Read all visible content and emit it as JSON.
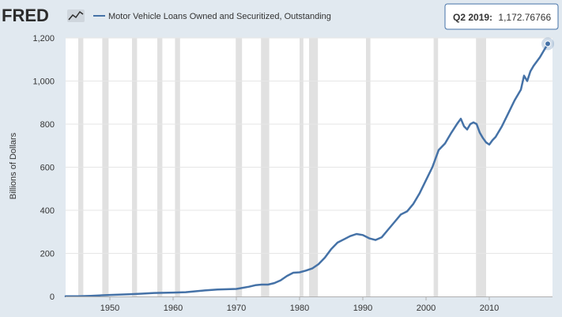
{
  "logo": {
    "text": "FRED"
  },
  "colors": {
    "background": "#e1e9f0",
    "plot_background": "#ffffff",
    "series": "#4572a7",
    "recession": "#e1e1e1",
    "grid": "#e6e6e6",
    "text": "#333333"
  },
  "tooltip": {
    "label": "Q2 2019:",
    "value": "1,172.76766"
  },
  "chart_data": {
    "type": "line",
    "title": "",
    "xlabel": "",
    "ylabel": "Billions of Dollars",
    "xlim": [
      1943.0,
      2020.0
    ],
    "ylim": [
      0,
      1200
    ],
    "grid": "horizontal",
    "legend_position": "top-left",
    "x_ticks": [
      "1950",
      "1960",
      "1970",
      "1980",
      "1990",
      "2000",
      "2010"
    ],
    "y_ticks": [
      "0",
      "200",
      "400",
      "600",
      "800",
      "1,000",
      "1,200"
    ],
    "recessions": [
      [
        1945.0,
        1945.8
      ],
      [
        1948.8,
        1949.8
      ],
      [
        1953.5,
        1954.3
      ],
      [
        1957.5,
        1958.3
      ],
      [
        1960.3,
        1961.1
      ],
      [
        1969.9,
        1970.9
      ],
      [
        1973.9,
        1975.2
      ],
      [
        1980.0,
        1980.6
      ],
      [
        1981.5,
        1982.9
      ],
      [
        1990.5,
        1991.2
      ],
      [
        2001.2,
        2001.9
      ],
      [
        2007.9,
        2009.5
      ]
    ],
    "series": [
      {
        "name": "Motor Vehicle Loans Owned and Securitized, Outstanding",
        "x": [
          1943.0,
          1945.0,
          1947.0,
          1950.0,
          1953.0,
          1955.0,
          1957.0,
          1960.0,
          1962.0,
          1965.0,
          1967.0,
          1970.0,
          1972.0,
          1973.0,
          1974.0,
          1975.0,
          1976.0,
          1977.0,
          1978.0,
          1979.0,
          1980.0,
          1981.0,
          1982.0,
          1983.0,
          1984.0,
          1985.0,
          1986.0,
          1987.0,
          1988.0,
          1989.0,
          1990.0,
          1991.0,
          1992.0,
          1993.0,
          1994.0,
          1995.0,
          1996.0,
          1997.0,
          1998.0,
          1999.0,
          2000.0,
          2001.0,
          2002.0,
          2003.0,
          2004.0,
          2005.0,
          2005.5,
          2006.0,
          2006.5,
          2007.0,
          2007.5,
          2008.0,
          2008.5,
          2009.0,
          2009.5,
          2010.0,
          2010.5,
          2011.0,
          2012.0,
          2013.0,
          2014.0,
          2015.0,
          2015.5,
          2016.0,
          2016.5,
          2017.0,
          2018.0,
          2019.0,
          2019.25
        ],
        "values": [
          1,
          1,
          3,
          7,
          10,
          13,
          16,
          18,
          20,
          28,
          32,
          35,
          45,
          52,
          55,
          55,
          62,
          75,
          95,
          110,
          112,
          120,
          130,
          150,
          180,
          220,
          250,
          265,
          280,
          290,
          285,
          270,
          262,
          275,
          310,
          345,
          380,
          395,
          430,
          480,
          540,
          600,
          680,
          710,
          760,
          805,
          825,
          790,
          775,
          800,
          808,
          800,
          760,
          735,
          715,
          705,
          725,
          740,
          790,
          850,
          910,
          960,
          1025,
          1000,
          1045,
          1070,
          1110,
          1160,
          1172.76766
        ]
      }
    ]
  }
}
